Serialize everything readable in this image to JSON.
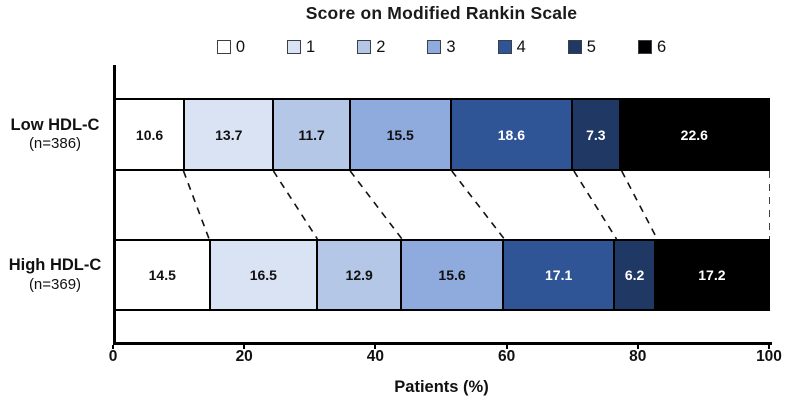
{
  "chart_data": {
    "type": "bar",
    "subtype": "horizontal-stacked",
    "title": "Score on Modified Rankin Scale",
    "xlabel": "Patients (%)",
    "xlim": [
      0,
      100
    ],
    "xticks": [
      0,
      20,
      40,
      60,
      80,
      100
    ],
    "legend_position": "top-center",
    "legend_title": "Score on Modified Rankin Scale",
    "grid": false,
    "connector_style": "dashed lines linking segment boundaries between bars",
    "groups": [
      {
        "label": "Low HDL-C",
        "n_label": "(n=386)"
      },
      {
        "label": "High HDL-C",
        "n_label": "(n=369)"
      }
    ],
    "series": [
      {
        "name": "0",
        "color": "#FFFFFF",
        "text_color": "#111111",
        "values": [
          10.6,
          14.5
        ]
      },
      {
        "name": "1",
        "color": "#DAE3F3",
        "text_color": "#111111",
        "values": [
          13.7,
          16.5
        ]
      },
      {
        "name": "2",
        "color": "#B4C7E7",
        "text_color": "#111111",
        "values": [
          11.7,
          12.9
        ]
      },
      {
        "name": "3",
        "color": "#8FAADC",
        "text_color": "#111111",
        "values": [
          15.5,
          15.6
        ]
      },
      {
        "name": "4",
        "color": "#2F5597",
        "text_color": "#FFFFFF",
        "values": [
          18.6,
          17.1
        ]
      },
      {
        "name": "5",
        "color": "#1F3864",
        "text_color": "#FFFFFF",
        "values": [
          7.3,
          6.2
        ]
      },
      {
        "name": "6",
        "color": "#000000",
        "text_color": "#FFFFFF",
        "values": [
          22.6,
          17.2
        ]
      }
    ],
    "axis_color": "#000000",
    "border_color": "#000000"
  }
}
